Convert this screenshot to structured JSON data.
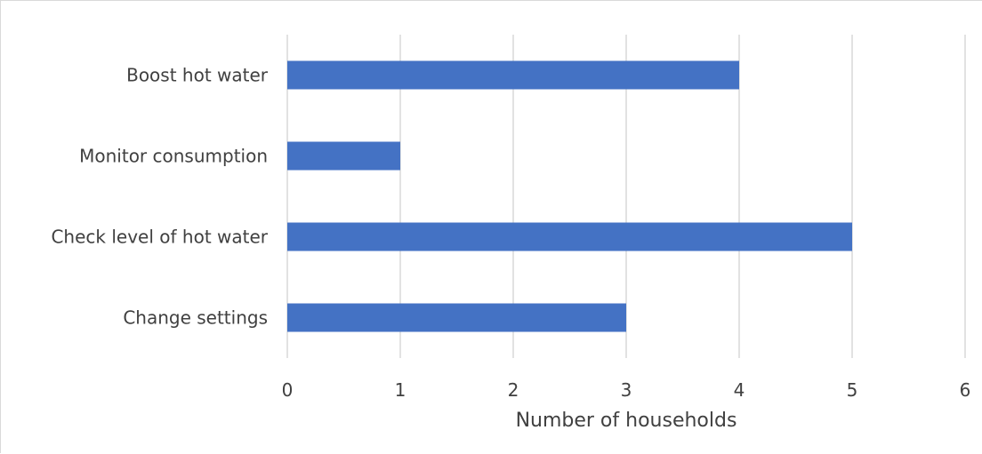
{
  "chart_data": {
    "type": "bar",
    "orientation": "horizontal",
    "categories": [
      "Change settings",
      "Check level of hot water",
      "Monitor consumption",
      "Boost hot water"
    ],
    "values": [
      3,
      5,
      1,
      4
    ],
    "xlabel": "Number of households",
    "ylabel": "",
    "xlim": [
      0,
      6
    ],
    "xticks": [
      "0",
      "1",
      "2",
      "3",
      "4",
      "5",
      "6"
    ],
    "grid": "vertical",
    "bar_color": "#4472c4",
    "grid_color": "#d9d9d9",
    "text_color": "#404040"
  }
}
